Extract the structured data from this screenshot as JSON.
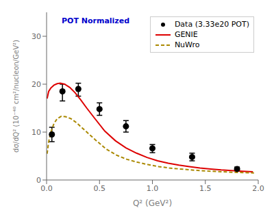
{
  "chart_data": {
    "type": "line",
    "xlabel": "Q² (GeV²)",
    "ylabel": "dσ/dQ² (10⁻⁴⁰ cm²/nucleon/GeV²)",
    "annotations": [
      {
        "text": "POT Normalized",
        "color": "#0000cc"
      }
    ],
    "xlim": [
      0.0,
      2.0
    ],
    "ylim": [
      0,
      35
    ],
    "xticks": [
      {
        "value": 0.0,
        "label": "0.0"
      },
      {
        "value": 0.5,
        "label": "0.5"
      },
      {
        "value": 1.0,
        "label": "1.0"
      },
      {
        "value": 1.5,
        "label": "1.5"
      },
      {
        "value": 2.0,
        "label": "2.0"
      }
    ],
    "yticks": [
      0,
      10,
      20,
      30
    ],
    "grid": false,
    "legend": "upper right",
    "series": [
      {
        "name": "Data (3.33e20 POT)",
        "type": "scatter",
        "marker": "circle",
        "color": "#000000",
        "x": [
          0.05,
          0.15,
          0.3,
          0.5,
          0.75,
          1.0,
          1.375,
          1.8
        ],
        "values": [
          9.5,
          18.5,
          19.0,
          14.8,
          11.2,
          6.6,
          4.8,
          2.3
        ],
        "yerr_lo": [
          1.5,
          2.0,
          1.5,
          1.3,
          1.2,
          0.9,
          0.8,
          0.4
        ],
        "yerr_hi": [
          1.5,
          1.5,
          1.2,
          1.3,
          1.2,
          0.8,
          0.8,
          0.4
        ]
      },
      {
        "name": "GENIE",
        "type": "line",
        "line_style": "solid",
        "color": "#dd0000",
        "x": [
          0.005,
          0.02,
          0.04,
          0.07,
          0.1,
          0.13,
          0.17,
          0.22,
          0.27,
          0.32,
          0.38,
          0.45,
          0.55,
          0.65,
          0.75,
          0.85,
          0.95,
          1.05,
          1.15,
          1.25,
          1.35,
          1.45,
          1.55,
          1.65,
          1.75,
          1.85,
          1.95
        ],
        "values": [
          17.0,
          18.5,
          19.2,
          19.8,
          20.1,
          20.2,
          20.0,
          19.3,
          18.2,
          16.8,
          15.0,
          13.0,
          10.2,
          8.2,
          6.7,
          5.6,
          4.7,
          4.0,
          3.5,
          3.1,
          2.8,
          2.5,
          2.3,
          2.1,
          1.95,
          1.82,
          1.72
        ]
      },
      {
        "name": "NuWro",
        "type": "line",
        "line_style": "dashed",
        "color": "#aa8800",
        "x": [
          0.005,
          0.02,
          0.04,
          0.07,
          0.1,
          0.14,
          0.18,
          0.23,
          0.28,
          0.33,
          0.39,
          0.46,
          0.56,
          0.66,
          0.76,
          0.86,
          0.96,
          1.06,
          1.16,
          1.26,
          1.36,
          1.46,
          1.56,
          1.66,
          1.76,
          1.86,
          1.96
        ],
        "values": [
          5.5,
          8.0,
          10.0,
          11.8,
          12.8,
          13.3,
          13.2,
          12.8,
          12.0,
          11.0,
          9.8,
          8.4,
          6.5,
          5.2,
          4.3,
          3.7,
          3.2,
          2.8,
          2.5,
          2.3,
          2.1,
          1.95,
          1.82,
          1.71,
          1.62,
          1.55,
          1.48
        ]
      }
    ]
  }
}
